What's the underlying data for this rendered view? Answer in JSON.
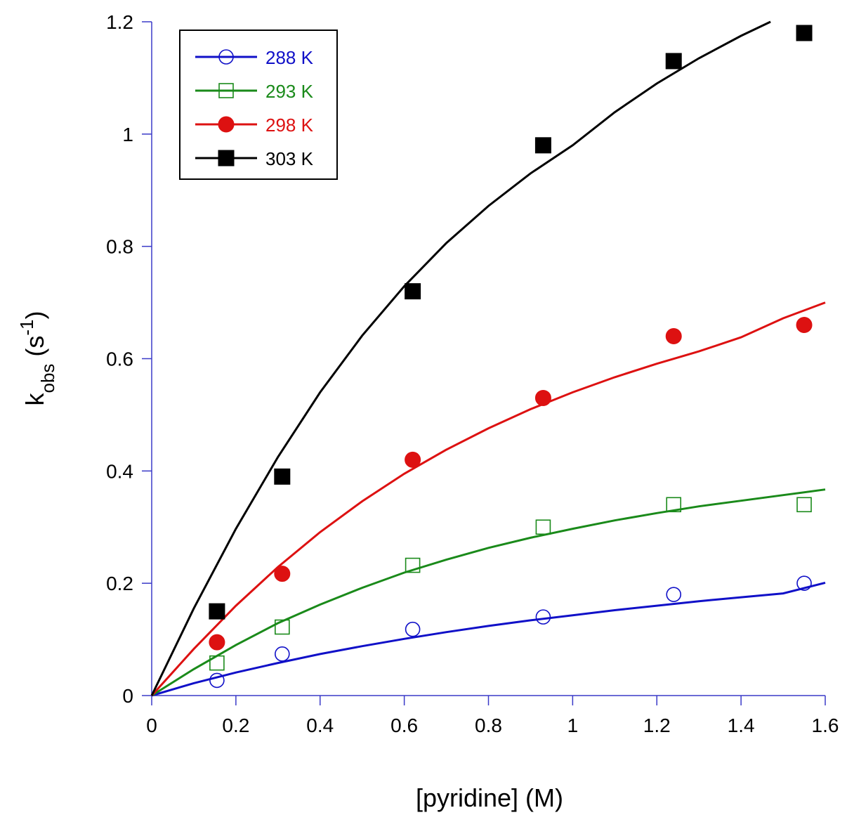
{
  "chart_data": {
    "type": "scatter",
    "title": "",
    "xlabel": "[pyridine] (M)",
    "ylabel_main": "k",
    "ylabel_sub": "obs",
    "ylabel_unit_open": " (s",
    "ylabel_unit_sup": "-1",
    "ylabel_unit_close": ")",
    "xlim": [
      0,
      1.6
    ],
    "ylim": [
      0,
      1.2
    ],
    "xticks": [
      0,
      0.2,
      0.4,
      0.6,
      0.8,
      1,
      1.2,
      1.4,
      1.6
    ],
    "xtick_labels": [
      "0",
      "0.2",
      "0.4",
      "0.6",
      "0.8",
      "1",
      "1.2",
      "1.4",
      "1.6"
    ],
    "yticks": [
      0,
      0.2,
      0.4,
      0.6,
      0.8,
      1,
      1.2
    ],
    "ytick_labels": [
      "0",
      "0.2",
      "0.4",
      "0.6",
      "0.8",
      "1",
      "1.2"
    ],
    "grid": false,
    "legend_position": "top-left",
    "series": [
      {
        "name": "288 K",
        "color": "#1010c8",
        "marker": "open-circle",
        "x": [
          0.155,
          0.31,
          0.62,
          0.93,
          1.24,
          1.55
        ],
        "y": [
          0.027,
          0.074,
          0.118,
          0.14,
          0.18,
          0.2
        ],
        "fit_x": [
          0,
          0.1,
          0.2,
          0.3,
          0.4,
          0.5,
          0.6,
          0.7,
          0.8,
          0.9,
          1.0,
          1.1,
          1.2,
          1.3,
          1.4,
          1.5,
          1.6
        ],
        "fit_y": [
          0,
          0.022,
          0.041,
          0.058,
          0.074,
          0.088,
          0.101,
          0.113,
          0.124,
          0.134,
          0.143,
          0.152,
          0.16,
          0.168,
          0.175,
          0.182,
          0.201
        ]
      },
      {
        "name": "293 K",
        "color": "#1a8a1a",
        "marker": "open-square",
        "x": [
          0.155,
          0.31,
          0.62,
          0.93,
          1.24,
          1.55
        ],
        "y": [
          0.058,
          0.122,
          0.232,
          0.3,
          0.34,
          0.34
        ],
        "fit_x": [
          0,
          0.1,
          0.2,
          0.3,
          0.4,
          0.5,
          0.6,
          0.7,
          0.8,
          0.9,
          1.0,
          1.1,
          1.2,
          1.3,
          1.4,
          1.5,
          1.6
        ],
        "fit_y": [
          0,
          0.047,
          0.09,
          0.129,
          0.162,
          0.192,
          0.219,
          0.242,
          0.263,
          0.281,
          0.297,
          0.312,
          0.325,
          0.337,
          0.347,
          0.357,
          0.367
        ]
      },
      {
        "name": "298 K",
        "color": "#dd1111",
        "marker": "filled-circle",
        "x": [
          0.155,
          0.31,
          0.62,
          0.93,
          1.24,
          1.55
        ],
        "y": [
          0.095,
          0.217,
          0.42,
          0.53,
          0.64,
          0.66
        ],
        "fit_x": [
          0,
          0.1,
          0.2,
          0.3,
          0.4,
          0.5,
          0.6,
          0.7,
          0.8,
          0.9,
          1.0,
          1.1,
          1.2,
          1.3,
          1.4,
          1.5,
          1.6
        ],
        "fit_y": [
          0,
          0.083,
          0.16,
          0.229,
          0.291,
          0.346,
          0.395,
          0.438,
          0.476,
          0.51,
          0.54,
          0.567,
          0.591,
          0.613,
          0.638,
          0.672,
          0.7
        ]
      },
      {
        "name": "303 K",
        "color": "#000000",
        "marker": "filled-square",
        "x": [
          0.155,
          0.31,
          0.62,
          0.93,
          1.24,
          1.55
        ],
        "y": [
          0.15,
          0.39,
          0.72,
          0.98,
          1.13,
          1.18
        ],
        "fit_x": [
          0,
          0.1,
          0.2,
          0.3,
          0.4,
          0.5,
          0.6,
          0.7,
          0.8,
          0.9,
          1.0,
          1.1,
          1.2,
          1.3,
          1.4,
          1.47
        ],
        "fit_y": [
          0,
          0.155,
          0.297,
          0.425,
          0.54,
          0.641,
          0.729,
          0.806,
          0.872,
          0.93,
          0.98,
          1.039,
          1.09,
          1.135,
          1.175,
          1.2
        ]
      }
    ]
  }
}
